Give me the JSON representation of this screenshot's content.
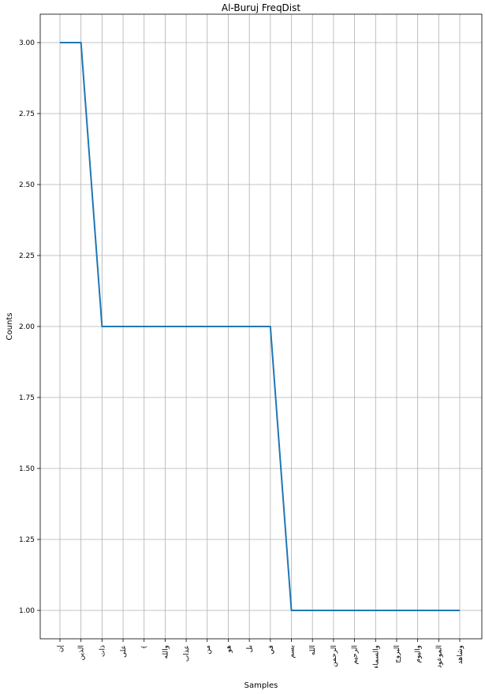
{
  "chart_data": {
    "type": "line",
    "title": "Al-Buruj FreqDist",
    "xlabel": "Samples",
    "ylabel": "Counts",
    "categories": [
      "إن",
      "الذين",
      "ذات",
      "على",
      "﴾",
      "والله",
      "عذاب",
      "من",
      "هو",
      "بل",
      "في",
      "بسم",
      "الله",
      "الرحمن",
      "الرحيم",
      "والسماء",
      "البروج",
      "واليوم",
      "الموعود",
      "وشاهد"
    ],
    "series": [
      {
        "values": [
          3,
          3,
          2,
          2,
          2,
          2,
          2,
          2,
          2,
          2,
          2,
          1,
          1,
          1,
          1,
          1,
          1,
          1,
          1,
          1
        ]
      }
    ],
    "ylim": [
      0.9,
      3.1
    ],
    "yticks": [
      1.0,
      1.25,
      1.5,
      1.75,
      2.0,
      2.25,
      2.5,
      2.75,
      3.0
    ],
    "ytick_labels": [
      "1.00",
      "1.25",
      "1.50",
      "1.75",
      "2.00",
      "2.25",
      "2.50",
      "2.75",
      "3.00"
    ],
    "grid": true,
    "line_color": "#1f77b4"
  }
}
